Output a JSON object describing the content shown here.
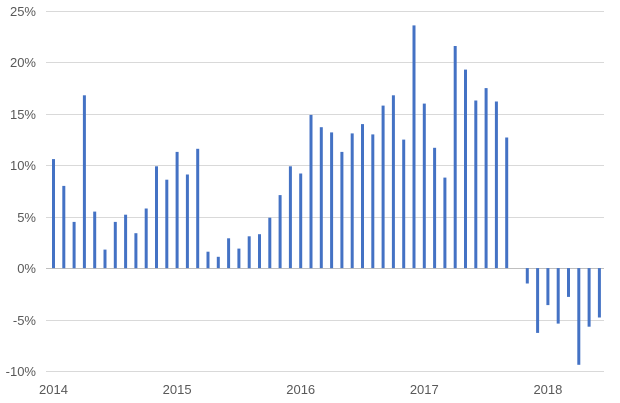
{
  "chart_data": {
    "type": "bar",
    "title": "",
    "xlabel": "",
    "ylabel": "",
    "ylim": [
      -10,
      25
    ],
    "yticks": [
      -10,
      -5,
      0,
      5,
      10,
      15,
      20,
      25
    ],
    "ytick_labels": [
      "-10%",
      "-5%",
      "0%",
      "5%",
      "10%",
      "15%",
      "20%",
      "25%"
    ],
    "xtick_labels": [
      "2014",
      "2015",
      "2016",
      "2017",
      "2018"
    ],
    "grid": "horizontal",
    "legend": "none",
    "bar_color": "#4472c4",
    "x_start": "2014-01",
    "interval": "month",
    "values": [
      10.6,
      8.0,
      4.5,
      16.8,
      5.5,
      1.8,
      4.5,
      5.2,
      3.4,
      5.8,
      9.9,
      8.6,
      11.3,
      9.1,
      11.6,
      1.6,
      1.1,
      2.9,
      1.9,
      3.1,
      3.3,
      4.9,
      7.1,
      9.9,
      9.2,
      14.9,
      13.7,
      13.2,
      11.3,
      13.1,
      14.0,
      13.0,
      15.8,
      16.8,
      12.5,
      23.6,
      16.0,
      11.7,
      8.8,
      21.6,
      19.3,
      16.3,
      17.5,
      16.2,
      12.7,
      null,
      -1.5,
      -6.3,
      -3.6,
      -5.4,
      -2.8,
      -9.4,
      -5.7,
      -4.8
    ]
  }
}
